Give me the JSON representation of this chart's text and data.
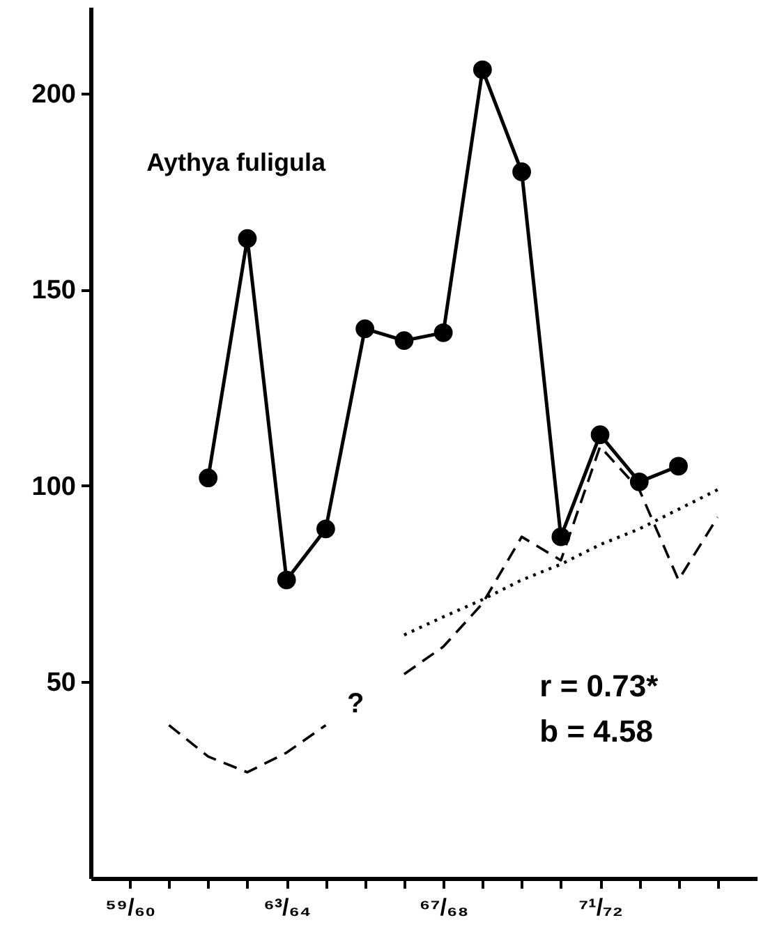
{
  "chart_data": {
    "type": "line",
    "annotations": [
      "Aythya fuligula",
      "?",
      "r = 0.73*",
      "b = 4.58"
    ],
    "categories": [
      "⁵⁹/₆₀",
      null,
      null,
      null,
      "⁶³/₆₄",
      null,
      null,
      null,
      "⁶⁷/₆₈",
      null,
      null,
      null,
      "⁷¹/₇₂",
      null,
      null,
      null
    ],
    "ylim": [
      0,
      222
    ],
    "yticks": [
      50,
      100,
      150,
      200
    ],
    "grid": false,
    "series": [
      {
        "color": "#000000",
        "marker": "circle",
        "line_style": "solid",
        "values": [
          null,
          null,
          102,
          163,
          76,
          89,
          140,
          137,
          139,
          206,
          180,
          87,
          113,
          101,
          105,
          null
        ]
      },
      {
        "color": "#000000",
        "marker": "none",
        "line_style": "dashed",
        "values": [
          null,
          39,
          31,
          27,
          32,
          39,
          null,
          52,
          59,
          70,
          87,
          81,
          110,
          99,
          76,
          92
        ]
      },
      {
        "color": "#000000",
        "marker": "none",
        "line_style": "dotted",
        "values": [
          null,
          null,
          null,
          null,
          null,
          null,
          null,
          62,
          66.6,
          71,
          76,
          80,
          85,
          89,
          94,
          99
        ]
      }
    ]
  }
}
